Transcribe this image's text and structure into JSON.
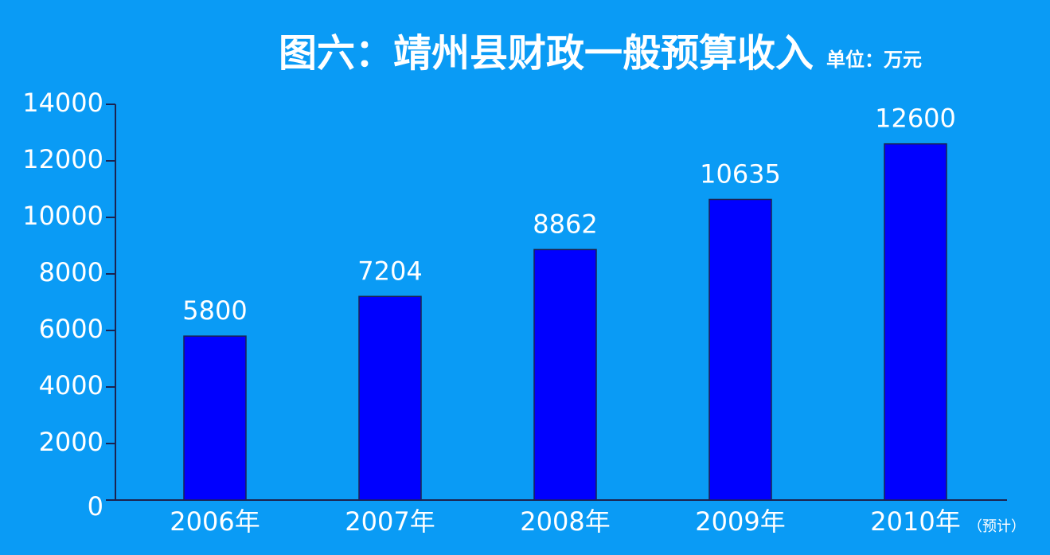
{
  "chart_data": {
    "type": "bar",
    "title": "图六：靖州县财政一般预算收入",
    "subtitle": "单位：万元",
    "categories": [
      "2006年",
      "2007年",
      "2008年",
      "2009年",
      "2010年"
    ],
    "values": [
      5800,
      7204,
      8862,
      10635,
      12600
    ],
    "color": "#0000ff",
    "annotation": "（预计）",
    "ylim": [
      0,
      14000
    ],
    "yticks": [
      0,
      2000,
      4000,
      6000,
      8000,
      10000,
      12000,
      14000
    ]
  }
}
